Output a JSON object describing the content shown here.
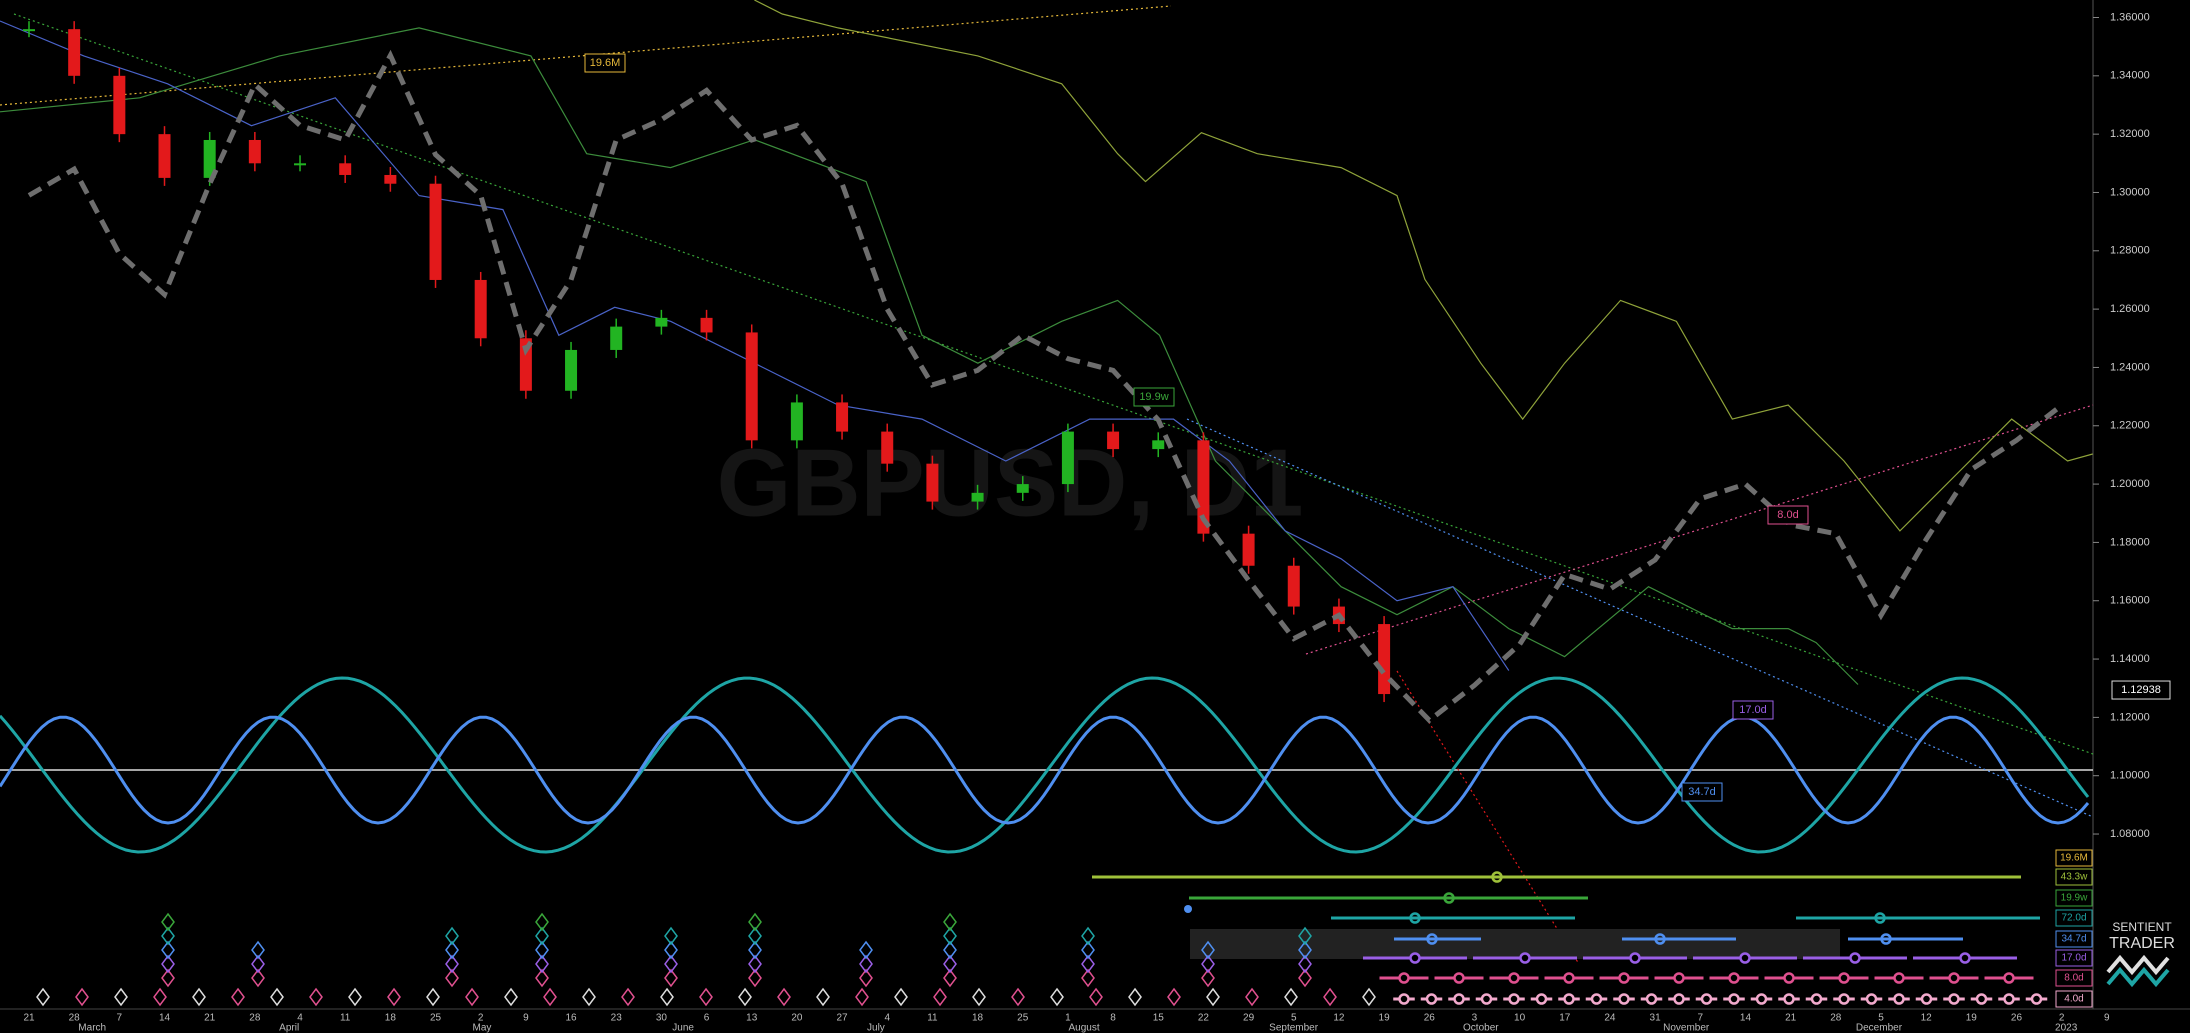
{
  "chart_data": {
    "type": "candlestick",
    "watermark": "GBPUSD, D1",
    "categories": [
      "21",
      "28",
      "7",
      "14",
      "21",
      "28",
      "4",
      "11",
      "18",
      "25",
      "2",
      "9",
      "16",
      "23",
      "30",
      "6",
      "13",
      "20",
      "27",
      "4",
      "11",
      "18",
      "25",
      "1",
      "8",
      "15",
      "22",
      "29",
      "5",
      "12",
      "19",
      "26",
      "3",
      "10",
      "17",
      "24",
      "31",
      "7",
      "14",
      "21",
      "28",
      "5",
      "12",
      "19",
      "26",
      "2",
      "9"
    ],
    "months": [
      "March",
      "April",
      "May",
      "June",
      "July",
      "August",
      "September",
      "October",
      "November",
      "December",
      "2023"
    ],
    "series": [
      {
        "type": "candlestick",
        "up_color": "#22b422",
        "down_color": "#e3191b",
        "values": [
          1.356,
          1.34,
          1.32,
          1.305,
          1.318,
          1.31,
          1.31,
          1.306,
          1.303,
          1.27,
          1.25,
          1.232,
          1.246,
          1.254,
          1.257,
          1.252,
          1.215,
          1.228,
          1.218,
          1.207,
          1.194,
          1.197,
          1.2,
          1.218,
          1.212,
          1.215,
          1.183,
          1.172,
          1.158,
          1.152,
          1.128,
          null,
          null,
          null,
          null,
          null,
          null,
          null,
          null,
          null,
          null,
          null,
          null,
          null,
          null,
          null,
          null
        ]
      },
      {
        "type": "line",
        "color": "#6e6e6e",
        "dashed": true,
        "values": [
          1.299,
          1.308,
          1.279,
          1.265,
          1.303,
          1.337,
          1.323,
          1.318,
          1.347,
          1.313,
          1.299,
          1.246,
          1.27,
          1.318,
          1.325,
          1.335,
          1.318,
          1.323,
          1.303,
          1.26,
          1.234,
          1.239,
          1.251,
          1.243,
          1.239,
          1.222,
          1.188,
          1.167,
          1.147,
          1.155,
          1.135,
          1.119,
          1.131,
          1.145,
          1.169,
          1.164,
          1.174,
          1.195,
          1.2,
          1.186,
          1.183,
          1.155,
          1.181,
          1.205,
          1.215,
          1.227,
          null
        ]
      }
    ],
    "ylim": [
      1.02,
      1.366
    ],
    "yticks": [
      {
        "value": 1.36,
        "label": "1.36000"
      },
      {
        "value": 1.34,
        "label": "1.34000"
      },
      {
        "value": 1.32,
        "label": "1.32000"
      },
      {
        "value": 1.3,
        "label": "1.30000"
      },
      {
        "value": 1.28,
        "label": "1.28000"
      },
      {
        "value": 1.26,
        "label": "1.26000"
      },
      {
        "value": 1.24,
        "label": "1.24000"
      },
      {
        "value": 1.22,
        "label": "1.22000"
      },
      {
        "value": 1.2,
        "label": "1.20000"
      },
      {
        "value": 1.18,
        "label": "1.18000"
      },
      {
        "value": 1.16,
        "label": "1.16000"
      },
      {
        "value": 1.14,
        "label": "1.14000"
      },
      {
        "value": 1.12,
        "label": "1.12000"
      },
      {
        "value": 1.1,
        "label": "1.10000"
      },
      {
        "value": 1.08,
        "label": "1.08000"
      }
    ],
    "last_price": 1.12938,
    "cycles": [
      {
        "label": "19.6M",
        "color": "#e6b93a"
      },
      {
        "label": "43.3w",
        "color": "#9fc13a"
      },
      {
        "label": "19.9w",
        "color": "#3aa63a"
      },
      {
        "label": "72.0d",
        "color": "#1ea5a5"
      },
      {
        "label": "34.7d",
        "color": "#4f8ff0"
      },
      {
        "label": "17.0d",
        "color": "#9a5fe6"
      },
      {
        "label": "8.0d",
        "color": "#e0508f"
      },
      {
        "label": "4.0d",
        "color": "#f2a9cc"
      }
    ],
    "annotations": [
      "19.6M",
      "19.9w",
      "8.0d",
      "17.0d",
      "34.7d"
    ],
    "logo": [
      "SENTIENT",
      "TRADER"
    ]
  }
}
